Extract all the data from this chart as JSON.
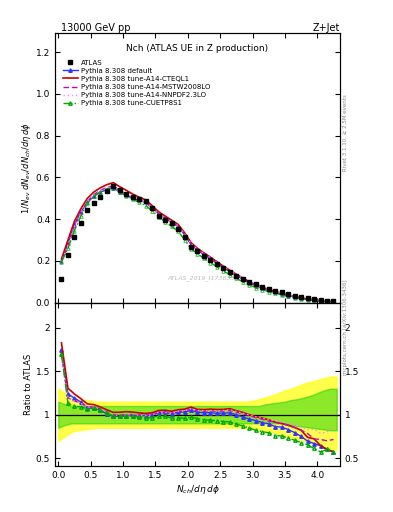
{
  "title_top": "13000 GeV pp",
  "title_right": "Z+Jet",
  "plot_title": "Nch (ATLAS UE in Z production)",
  "right_label_top": "Rivet 3.1.10, ≥ 2.5M events",
  "right_label_bot": "mcplots.cern.ch [arXiv:1306.3436]",
  "watermark": "ATLAS_2019_I1736531",
  "x_min": -0.05,
  "x_max": 4.35,
  "y_top_min": 0.0,
  "y_top_max": 1.29,
  "y_bot_min": 0.41,
  "y_bot_max": 2.29,
  "atlas_x": [
    0.05,
    0.15,
    0.25,
    0.35,
    0.45,
    0.55,
    0.65,
    0.75,
    0.85,
    0.95,
    1.05,
    1.15,
    1.25,
    1.35,
    1.45,
    1.55,
    1.65,
    1.75,
    1.85,
    1.95,
    2.05,
    2.15,
    2.25,
    2.35,
    2.45,
    2.55,
    2.65,
    2.75,
    2.85,
    2.95,
    3.05,
    3.15,
    3.25,
    3.35,
    3.45,
    3.55,
    3.65,
    3.75,
    3.85,
    3.95,
    4.05,
    4.15,
    4.25
  ],
  "atlas_y": [
    0.115,
    0.23,
    0.315,
    0.38,
    0.445,
    0.475,
    0.505,
    0.535,
    0.56,
    0.54,
    0.52,
    0.505,
    0.495,
    0.485,
    0.455,
    0.415,
    0.395,
    0.38,
    0.355,
    0.315,
    0.265,
    0.245,
    0.225,
    0.205,
    0.185,
    0.165,
    0.145,
    0.13,
    0.115,
    0.1,
    0.088,
    0.077,
    0.067,
    0.058,
    0.049,
    0.041,
    0.034,
    0.028,
    0.023,
    0.018,
    0.014,
    0.01,
    0.007
  ],
  "x_mc": [
    0.05,
    0.15,
    0.25,
    0.35,
    0.45,
    0.55,
    0.65,
    0.75,
    0.85,
    0.95,
    1.05,
    1.15,
    1.25,
    1.35,
    1.45,
    1.55,
    1.65,
    1.75,
    1.85,
    1.95,
    2.05,
    2.15,
    2.25,
    2.35,
    2.45,
    2.55,
    2.65,
    2.75,
    2.85,
    2.95,
    3.05,
    3.15,
    3.25,
    3.35,
    3.45,
    3.55,
    3.65,
    3.75,
    3.85,
    3.95,
    4.05,
    4.15,
    4.25
  ],
  "default_y": [
    0.2,
    0.285,
    0.375,
    0.435,
    0.48,
    0.51,
    0.53,
    0.54,
    0.55,
    0.53,
    0.515,
    0.5,
    0.49,
    0.48,
    0.455,
    0.425,
    0.405,
    0.385,
    0.365,
    0.325,
    0.278,
    0.252,
    0.23,
    0.21,
    0.188,
    0.168,
    0.148,
    0.13,
    0.112,
    0.095,
    0.082,
    0.07,
    0.06,
    0.05,
    0.042,
    0.034,
    0.027,
    0.021,
    0.016,
    0.012,
    0.009,
    0.006,
    0.004
  ],
  "cteql1_y": [
    0.21,
    0.3,
    0.39,
    0.45,
    0.5,
    0.53,
    0.55,
    0.565,
    0.575,
    0.555,
    0.538,
    0.52,
    0.505,
    0.492,
    0.465,
    0.435,
    0.415,
    0.395,
    0.375,
    0.335,
    0.288,
    0.26,
    0.238,
    0.218,
    0.196,
    0.175,
    0.155,
    0.136,
    0.118,
    0.1,
    0.086,
    0.074,
    0.063,
    0.053,
    0.044,
    0.036,
    0.029,
    0.023,
    0.017,
    0.013,
    0.009,
    0.006,
    0.004
  ],
  "mstw_y": [
    0.195,
    0.275,
    0.365,
    0.43,
    0.485,
    0.518,
    0.538,
    0.552,
    0.558,
    0.538,
    0.52,
    0.506,
    0.492,
    0.48,
    0.455,
    0.425,
    0.405,
    0.385,
    0.368,
    0.328,
    0.282,
    0.256,
    0.234,
    0.214,
    0.192,
    0.172,
    0.152,
    0.134,
    0.116,
    0.099,
    0.085,
    0.073,
    0.062,
    0.053,
    0.044,
    0.036,
    0.029,
    0.023,
    0.018,
    0.013,
    0.01,
    0.007,
    0.005
  ],
  "nnpdf_y": [
    0.195,
    0.275,
    0.365,
    0.43,
    0.483,
    0.516,
    0.536,
    0.55,
    0.556,
    0.536,
    0.519,
    0.505,
    0.492,
    0.48,
    0.455,
    0.426,
    0.406,
    0.386,
    0.369,
    0.329,
    0.283,
    0.257,
    0.235,
    0.215,
    0.193,
    0.173,
    0.153,
    0.135,
    0.117,
    0.1,
    0.086,
    0.074,
    0.063,
    0.054,
    0.045,
    0.037,
    0.03,
    0.024,
    0.019,
    0.015,
    0.011,
    0.008,
    0.006
  ],
  "cuetp_y": [
    0.195,
    0.26,
    0.345,
    0.415,
    0.475,
    0.51,
    0.53,
    0.545,
    0.55,
    0.53,
    0.512,
    0.496,
    0.48,
    0.465,
    0.44,
    0.41,
    0.388,
    0.365,
    0.342,
    0.302,
    0.258,
    0.234,
    0.212,
    0.192,
    0.172,
    0.152,
    0.133,
    0.116,
    0.1,
    0.085,
    0.072,
    0.062,
    0.053,
    0.044,
    0.037,
    0.03,
    0.024,
    0.019,
    0.015,
    0.011,
    0.008,
    0.006,
    0.004
  ],
  "color_default": "#3333ff",
  "color_cteql1": "#cc0000",
  "color_mstw": "#cc00cc",
  "color_nnpdf": "#ff88ff",
  "color_cuetp": "#00aa00",
  "band_x": [
    0.0,
    0.1,
    0.2,
    0.3,
    0.4,
    0.5,
    0.6,
    0.7,
    0.8,
    0.9,
    1.0,
    1.1,
    1.2,
    1.3,
    1.4,
    1.5,
    1.6,
    1.7,
    1.8,
    1.9,
    2.0,
    2.1,
    2.2,
    2.3,
    2.4,
    2.5,
    2.6,
    2.7,
    2.8,
    2.9,
    3.0,
    3.1,
    3.2,
    3.3,
    3.4,
    3.5,
    3.6,
    3.7,
    3.8,
    3.9,
    4.0,
    4.1,
    4.2,
    4.3
  ],
  "band_green_lo": [
    0.85,
    0.88,
    0.9,
    0.9,
    0.9,
    0.9,
    0.9,
    0.9,
    0.9,
    0.9,
    0.9,
    0.9,
    0.9,
    0.9,
    0.9,
    0.9,
    0.9,
    0.9,
    0.9,
    0.9,
    0.9,
    0.9,
    0.9,
    0.9,
    0.9,
    0.9,
    0.9,
    0.9,
    0.9,
    0.9,
    0.9,
    0.9,
    0.9,
    0.9,
    0.9,
    0.9,
    0.88,
    0.87,
    0.86,
    0.85,
    0.84,
    0.83,
    0.82,
    0.82
  ],
  "band_green_hi": [
    1.15,
    1.12,
    1.1,
    1.1,
    1.1,
    1.1,
    1.1,
    1.1,
    1.1,
    1.1,
    1.1,
    1.1,
    1.1,
    1.1,
    1.1,
    1.1,
    1.1,
    1.1,
    1.1,
    1.1,
    1.1,
    1.1,
    1.1,
    1.1,
    1.1,
    1.1,
    1.1,
    1.1,
    1.1,
    1.1,
    1.1,
    1.1,
    1.12,
    1.13,
    1.14,
    1.15,
    1.17,
    1.18,
    1.2,
    1.22,
    1.25,
    1.28,
    1.3,
    1.3
  ],
  "band_yellow_lo": [
    0.7,
    0.75,
    0.8,
    0.82,
    0.83,
    0.84,
    0.85,
    0.85,
    0.85,
    0.85,
    0.85,
    0.85,
    0.85,
    0.85,
    0.85,
    0.85,
    0.85,
    0.85,
    0.85,
    0.85,
    0.85,
    0.85,
    0.85,
    0.85,
    0.85,
    0.85,
    0.85,
    0.85,
    0.85,
    0.85,
    0.84,
    0.83,
    0.82,
    0.8,
    0.78,
    0.76,
    0.74,
    0.72,
    0.7,
    0.68,
    0.65,
    0.62,
    0.6,
    0.6
  ],
  "band_yellow_hi": [
    1.3,
    1.25,
    1.2,
    1.18,
    1.17,
    1.16,
    1.15,
    1.15,
    1.15,
    1.15,
    1.15,
    1.15,
    1.15,
    1.15,
    1.15,
    1.15,
    1.15,
    1.15,
    1.15,
    1.15,
    1.15,
    1.15,
    1.15,
    1.15,
    1.15,
    1.15,
    1.15,
    1.15,
    1.15,
    1.15,
    1.16,
    1.18,
    1.2,
    1.22,
    1.25,
    1.28,
    1.3,
    1.33,
    1.36,
    1.38,
    1.4,
    1.42,
    1.44,
    1.44
  ]
}
